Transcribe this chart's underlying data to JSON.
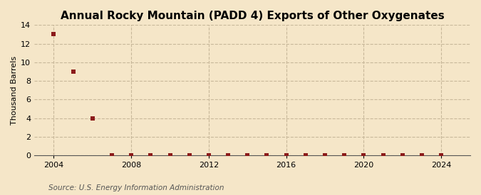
{
  "title": "Annual Rocky Mountain (PADD 4) Exports of Other Oxygenates",
  "ylabel": "Thousand Barrels",
  "source": "Source: U.S. Energy Information Administration",
  "background_color": "#f5e6c8",
  "plot_bg_color": "#f5e6c8",
  "years": [
    2004,
    2005,
    2006,
    2007,
    2008,
    2009,
    2010,
    2011,
    2012,
    2013,
    2014,
    2015,
    2016,
    2017,
    2018,
    2019,
    2020,
    2021,
    2022,
    2023,
    2024
  ],
  "values": [
    13.0,
    9.0,
    4.0,
    0.0,
    0.0,
    0.0,
    0.0,
    0.0,
    0.0,
    0.0,
    0.0,
    0.0,
    0.0,
    0.0,
    0.0,
    0.0,
    0.0,
    0.0,
    0.0,
    0.0,
    0.0
  ],
  "marker_color": "#8b1a1a",
  "marker_size": 5,
  "xlim": [
    2003.0,
    2025.5
  ],
  "ylim": [
    0,
    14
  ],
  "xticks": [
    2004,
    2008,
    2012,
    2016,
    2020,
    2024
  ],
  "yticks": [
    0,
    2,
    4,
    6,
    8,
    10,
    12,
    14
  ],
  "grid_color": "#c8b89a",
  "grid_style": "--",
  "title_fontsize": 11,
  "label_fontsize": 8,
  "tick_fontsize": 8,
  "source_fontsize": 7.5
}
